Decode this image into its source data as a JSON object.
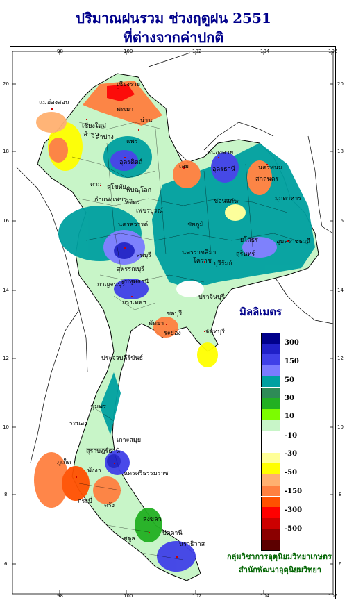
{
  "title": {
    "line1": "ปริมาณฝนรวม ช่วงฤดูฝน 2551",
    "line2": "ที่ต่างจากค่าปกติ"
  },
  "axes": {
    "lon_ticks": [
      "98",
      "100",
      "102",
      "104",
      "106"
    ],
    "lat_ticks": [
      "20",
      "18",
      "16",
      "14",
      "12",
      "10",
      "8",
      "6"
    ]
  },
  "legend": {
    "unit": "มิลลิเมตร",
    "labels": [
      "300",
      "150",
      "50",
      "30",
      "10",
      "-10",
      "-30",
      "-50",
      "-150",
      "-300",
      "-500"
    ],
    "colors": [
      "#00008b",
      "#2020c8",
      "#4040e8",
      "#7b7bff",
      "#00a0a0",
      "#2e8b57",
      "#22b022",
      "#7cfc00",
      "#c8f5c8",
      "#ffffff",
      "#ffffff",
      "#ffff99",
      "#ffff00",
      "#ffb070",
      "#ff8040",
      "#ff5000",
      "#ff0000",
      "#cc0000",
      "#8b0000",
      "#5c0000"
    ]
  },
  "places": [
    {
      "name": "เชียงราย"
    },
    {
      "name": "แม่ฮ่องสอน"
    },
    {
      "name": "เชียงใหม่"
    },
    {
      "name": "พะเยา"
    },
    {
      "name": "น่าน"
    },
    {
      "name": "ลำพูน"
    },
    {
      "name": "ลำปาง"
    },
    {
      "name": "แพร่"
    },
    {
      "name": "อุตรดิตถ์"
    },
    {
      "name": "ตาก"
    },
    {
      "name": "สุโขทัย"
    },
    {
      "name": "พิษณุโลก"
    },
    {
      "name": "กำแพงเพชร"
    },
    {
      "name": "พิจิตร"
    },
    {
      "name": "เพชรบูรณ์"
    },
    {
      "name": "เลย"
    },
    {
      "name": "หนองคาย"
    },
    {
      "name": "อุดรธานี"
    },
    {
      "name": "นครพนม"
    },
    {
      "name": "สกลนคร"
    },
    {
      "name": "มุกดาหาร"
    },
    {
      "name": "ขอนแก่น"
    },
    {
      "name": "ชัยภูมิ"
    },
    {
      "name": "นครสวรรค์"
    },
    {
      "name": "อุบลราชธานี"
    },
    {
      "name": "ยโสธร"
    },
    {
      "name": "สุรินทร์"
    },
    {
      "name": "นครราชสีมา"
    },
    {
      "name": "โคราช"
    },
    {
      "name": "บุรีรัมย์"
    },
    {
      "name": "ลพบุรี"
    },
    {
      "name": "สุพรรณบุรี"
    },
    {
      "name": "กาญจนบุรี"
    },
    {
      "name": "ปทุมธานี"
    },
    {
      "name": "กรุงเทพฯ"
    },
    {
      "name": "ปราจีนบุรี"
    },
    {
      "name": "ชลบุรี"
    },
    {
      "name": "พัทยา"
    },
    {
      "name": "ระยอง"
    },
    {
      "name": "จันทบุรี"
    },
    {
      "name": "ประจวบคีรีขันธ์"
    },
    {
      "name": "ชุมพร"
    },
    {
      "name": "ระนอง"
    },
    {
      "name": "เกาะสมุย"
    },
    {
      "name": "สุราษฎร์ธานี"
    },
    {
      "name": "ภูเก็ต"
    },
    {
      "name": "พังงา"
    },
    {
      "name": "นครศรีธรรมราช"
    },
    {
      "name": "กระบี่"
    },
    {
      "name": "ตรัง"
    },
    {
      "name": "สงขลา"
    },
    {
      "name": "ปัตตานี"
    },
    {
      "name": "นราธิวาส"
    },
    {
      "name": "สตูล"
    }
  ],
  "credit": {
    "line1": "กลุ่มวิชาการอุตุนิยมวิทยาเกษตร",
    "line2": "สำนักพัฒนาอุตุนิยมวิทยา"
  }
}
